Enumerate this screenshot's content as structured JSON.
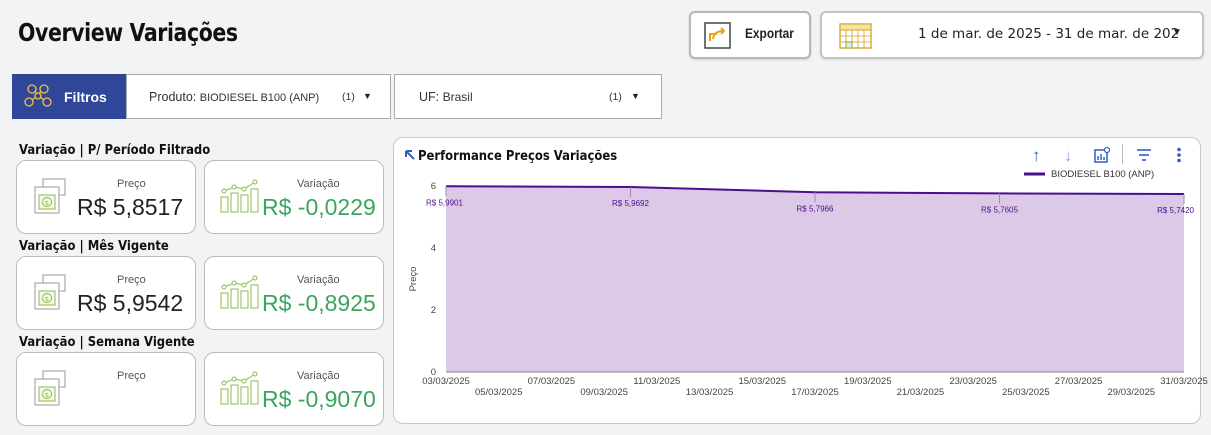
{
  "header": {
    "title": "Overview Variações",
    "export_label": "Exportar",
    "date_range": "1 de mar. de 2025 - 31 de mar. de 202"
  },
  "filters": {
    "button_label": "Filtros",
    "produto": {
      "key": "Produto: ",
      "value": "BIODIESEL B100 (ANP)",
      "count": "(1)"
    },
    "uf": {
      "key": "UF: ",
      "value": "Brasil",
      "count": "(1)"
    }
  },
  "sections": [
    {
      "label": "Variação | P/ Período Filtrado",
      "price_label": "Preço",
      "price_value": "R$ 5,8517",
      "variation_label": "Variação",
      "variation_value": "R$ -0,0229"
    },
    {
      "label": "Variação | Mês Vigente",
      "price_label": "Preço",
      "price_value": "R$ 5,9542",
      "variation_label": "Variação",
      "variation_value": "R$ -0,8925"
    },
    {
      "label": "Variação | Semana Vigente",
      "price_label": "Preço",
      "price_value": "",
      "variation_label": "Variação",
      "variation_value": "R$ -0,9070"
    }
  ],
  "colors": {
    "accent": "#2f4699",
    "line": "#4b0f8a",
    "area": "#dcc9e8",
    "positive": "#3aa65c",
    "tools": "#2f5fbf"
  },
  "chart_data": {
    "type": "area",
    "title": "Performance Preços Variações",
    "ylabel": "Preço",
    "xlabel": "",
    "ylim": [
      0,
      6
    ],
    "yticks": [
      0,
      2,
      4,
      6
    ],
    "x_ticks_upper": [
      "03/03/2025",
      "07/03/2025",
      "11/03/2025",
      "15/03/2025",
      "19/03/2025",
      "23/03/2025",
      "27/03/2025",
      "31/03/2025"
    ],
    "x_ticks_lower": [
      "05/03/2025",
      "09/03/2025",
      "13/03/2025",
      "17/03/2025",
      "21/03/2025",
      "25/03/2025",
      "29/03/2025"
    ],
    "x_range": [
      "03/03/2025",
      "31/03/2025"
    ],
    "series": [
      {
        "name": "BIODIESEL B100 (ANP)",
        "points": [
          {
            "x": "03/03/2025",
            "y": 5.9901,
            "label": "R$ 5,9901"
          },
          {
            "x": "10/03/2025",
            "y": 5.9692,
            "label": "R$ 5,9692"
          },
          {
            "x": "17/03/2025",
            "y": 5.7966,
            "label": "R$ 5,7966"
          },
          {
            "x": "24/03/2025",
            "y": 5.7605,
            "label": "R$ 5,7605"
          },
          {
            "x": "31/03/2025",
            "y": 5.742,
            "label": "R$ 5,7420"
          }
        ]
      }
    ],
    "legend_position": "top-right",
    "grid": false
  }
}
